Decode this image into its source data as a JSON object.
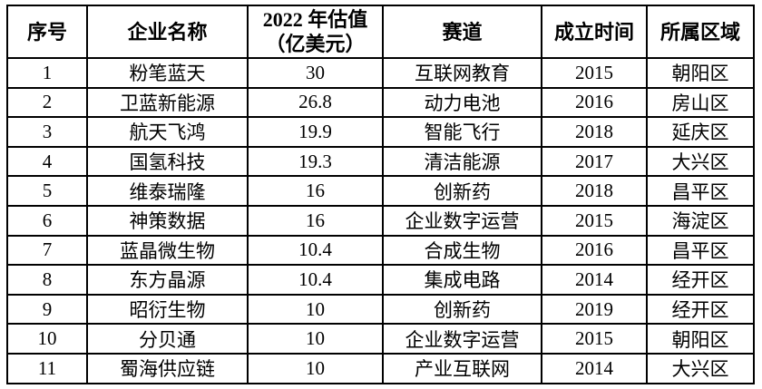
{
  "colors": {
    "background": "#ffffff",
    "border": "#000000",
    "text": "#000000"
  },
  "table": {
    "header": {
      "index": "序号",
      "company": "企业名称",
      "valuation_line1": "2022 年估值",
      "valuation_line2": "（亿美元）",
      "track": "赛道",
      "founded": "成立时间",
      "district": "所属区域"
    },
    "rows": [
      [
        "1",
        "粉笔蓝天",
        "30",
        "互联网教育",
        "2015",
        "朝阳区"
      ],
      [
        "2",
        "卫蓝新能源",
        "26.8",
        "动力电池",
        "2016",
        "房山区"
      ],
      [
        "3",
        "航天飞鸿",
        "19.9",
        "智能飞行",
        "2018",
        "延庆区"
      ],
      [
        "4",
        "国氢科技",
        "19.3",
        "清洁能源",
        "2017",
        "大兴区"
      ],
      [
        "5",
        "维泰瑞隆",
        "16",
        "创新药",
        "2018",
        "昌平区"
      ],
      [
        "6",
        "神策数据",
        "16",
        "企业数字运营",
        "2015",
        "海淀区"
      ],
      [
        "7",
        "蓝晶微生物",
        "10.4",
        "合成生物",
        "2016",
        "昌平区"
      ],
      [
        "8",
        "东方晶源",
        "10.4",
        "集成电路",
        "2014",
        "经开区"
      ],
      [
        "9",
        "昭衍生物",
        "10",
        "创新药",
        "2019",
        "经开区"
      ],
      [
        "10",
        "分贝通",
        "10",
        "企业数字运营",
        "2015",
        "朝阳区"
      ],
      [
        "11",
        "蜀海供应链",
        "10",
        "产业互联网",
        "2014",
        "大兴区"
      ]
    ]
  }
}
